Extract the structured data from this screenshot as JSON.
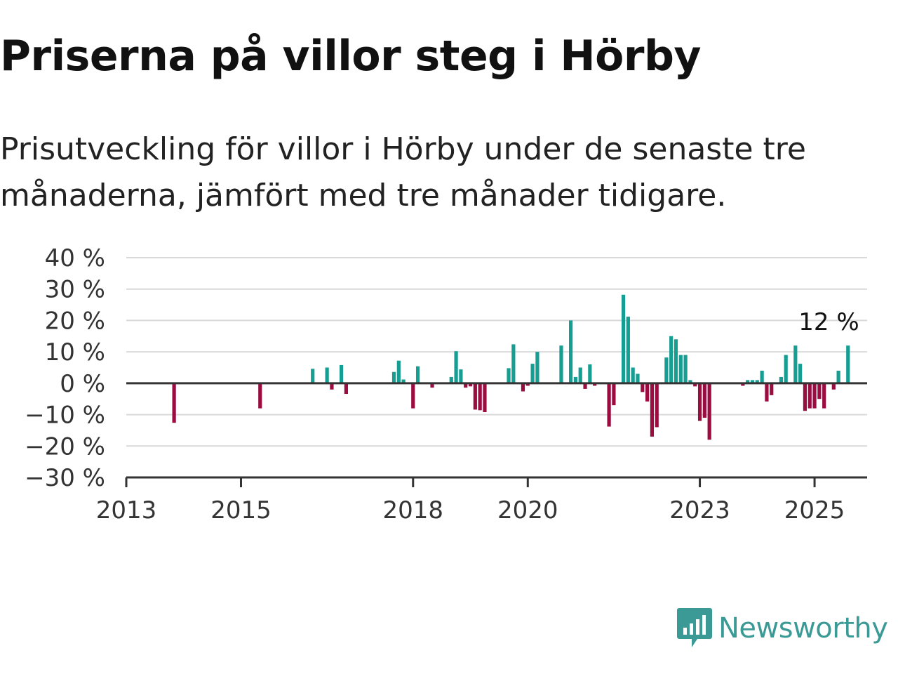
{
  "title": "Priserna på villor steg i Hörby",
  "subtitle": "Prisutveckling för villor i Hörby under de senaste tre månaderna, jämfört med tre månader tidigare.",
  "logo": {
    "text": "Newsworthy",
    "icon": "newsworthy-logo-icon"
  },
  "colors": {
    "positive": "#169e93",
    "negative": "#9b0c41",
    "grid": "#d9d9d9",
    "axis": "#333333",
    "logo": "#3b9a95"
  },
  "chart_data": {
    "type": "bar",
    "title": "Priserna på villor steg i Hörby",
    "subtitle": "Prisutveckling för villor i Hörby under de senaste tre månaderna, jämfört med tre månader tidigare.",
    "xlabel": "",
    "ylabel": "",
    "y_unit": "%",
    "ylim": [
      -30,
      40
    ],
    "yticks": [
      {
        "value": 40,
        "label": "40 %"
      },
      {
        "value": 30,
        "label": "30 %"
      },
      {
        "value": 20,
        "label": "20 %"
      },
      {
        "value": 10,
        "label": "10 %"
      },
      {
        "value": 0,
        "label": "0 %"
      },
      {
        "value": -10,
        "label": "−10 %"
      },
      {
        "value": -20,
        "label": "−20 %"
      },
      {
        "value": -30,
        "label": "−30 %"
      }
    ],
    "xlim": [
      "2013-01",
      "2025-12"
    ],
    "xticks": [
      "2013",
      "2015",
      "2018",
      "2020",
      "2023",
      "2025"
    ],
    "grid": true,
    "annotation": {
      "date": "2025-04",
      "label": "12 %"
    },
    "series": [
      {
        "values": [
          {
            "date": "2013-11",
            "value": -12.6
          },
          {
            "date": "2015-05",
            "value": -8.0
          },
          {
            "date": "2016-04",
            "value": 4.6
          },
          {
            "date": "2016-07",
            "value": 5.0
          },
          {
            "date": "2016-08",
            "value": -2.0
          },
          {
            "date": "2016-10",
            "value": 5.8
          },
          {
            "date": "2016-11",
            "value": -3.4
          },
          {
            "date": "2017-09",
            "value": 3.6
          },
          {
            "date": "2017-10",
            "value": 7.2
          },
          {
            "date": "2017-11",
            "value": 1.2
          },
          {
            "date": "2018-01",
            "value": -8.0
          },
          {
            "date": "2018-02",
            "value": 5.4
          },
          {
            "date": "2018-05",
            "value": -1.4
          },
          {
            "date": "2018-09",
            "value": 2.0
          },
          {
            "date": "2018-10",
            "value": 10.2
          },
          {
            "date": "2018-11",
            "value": 4.4
          },
          {
            "date": "2018-12",
            "value": -1.4
          },
          {
            "date": "2019-01",
            "value": -1.0
          },
          {
            "date": "2019-02",
            "value": -8.4
          },
          {
            "date": "2019-03",
            "value": -8.6
          },
          {
            "date": "2019-04",
            "value": -9.2
          },
          {
            "date": "2019-09",
            "value": 4.8
          },
          {
            "date": "2019-10",
            "value": 12.4
          },
          {
            "date": "2019-12",
            "value": -2.6
          },
          {
            "date": "2020-01",
            "value": -0.8
          },
          {
            "date": "2020-02",
            "value": 6.2
          },
          {
            "date": "2020-03",
            "value": 10.0
          },
          {
            "date": "2020-08",
            "value": 12.0
          },
          {
            "date": "2020-10",
            "value": 20.0
          },
          {
            "date": "2020-11",
            "value": 2.0
          },
          {
            "date": "2020-12",
            "value": 5.0
          },
          {
            "date": "2021-01",
            "value": -1.8
          },
          {
            "date": "2021-02",
            "value": 6.0
          },
          {
            "date": "2021-03",
            "value": -0.8
          },
          {
            "date": "2021-06",
            "value": -13.8
          },
          {
            "date": "2021-07",
            "value": -7.0
          },
          {
            "date": "2021-09",
            "value": 28.2
          },
          {
            "date": "2021-10",
            "value": 21.2
          },
          {
            "date": "2021-11",
            "value": 5.0
          },
          {
            "date": "2021-12",
            "value": 3.0
          },
          {
            "date": "2022-01",
            "value": -2.8
          },
          {
            "date": "2022-02",
            "value": -5.8
          },
          {
            "date": "2022-03",
            "value": -17.0
          },
          {
            "date": "2022-04",
            "value": -14.0
          },
          {
            "date": "2022-06",
            "value": 8.2
          },
          {
            "date": "2022-07",
            "value": 15.0
          },
          {
            "date": "2022-08",
            "value": 14.0
          },
          {
            "date": "2022-09",
            "value": 9.0
          },
          {
            "date": "2022-10",
            "value": 9.0
          },
          {
            "date": "2022-11",
            "value": 1.0
          },
          {
            "date": "2022-12",
            "value": -1.0
          },
          {
            "date": "2023-01",
            "value": -12.0
          },
          {
            "date": "2023-02",
            "value": -11.0
          },
          {
            "date": "2023-03",
            "value": -18.0
          },
          {
            "date": "2023-10",
            "value": -0.8
          },
          {
            "date": "2023-11",
            "value": 1.0
          },
          {
            "date": "2023-12",
            "value": 1.0
          },
          {
            "date": "2024-01",
            "value": 1.0
          },
          {
            "date": "2024-02",
            "value": 4.0
          },
          {
            "date": "2024-03",
            "value": -5.8
          },
          {
            "date": "2024-04",
            "value": -3.8
          },
          {
            "date": "2024-06",
            "value": 2.0
          },
          {
            "date": "2024-07",
            "value": 9.0
          },
          {
            "date": "2024-09",
            "value": 12.0
          },
          {
            "date": "2024-10",
            "value": 6.2
          },
          {
            "date": "2024-11",
            "value": -8.8
          },
          {
            "date": "2024-12",
            "value": -8.0
          },
          {
            "date": "2025-01",
            "value": -8.0
          },
          {
            "date": "2025-02",
            "value": -5.0
          },
          {
            "date": "2025-03",
            "value": -8.0
          },
          {
            "date": "2025-05",
            "value": -2.0
          },
          {
            "date": "2025-06",
            "value": 4.0
          },
          {
            "date": "2025-08",
            "value": 12.0
          }
        ]
      }
    ]
  }
}
